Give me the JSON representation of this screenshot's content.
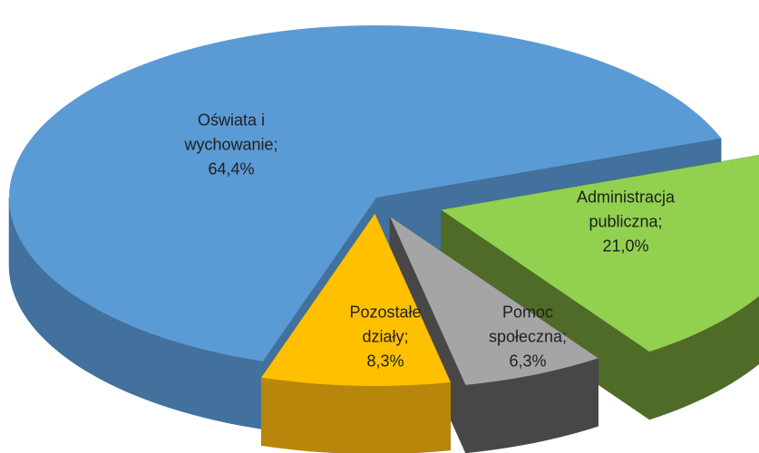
{
  "chart_data": {
    "type": "pie",
    "categories": [
      "Oświata i wychowanie",
      "Administracja publiczna",
      "Pomoc społeczna",
      "Pozostałe działy"
    ],
    "values": [
      64.4,
      21.0,
      6.3,
      8.3
    ],
    "value_labels": [
      "64,4%",
      "21,0%",
      "6,3%",
      "8,3%"
    ],
    "label_separator": ";",
    "colors": [
      "#5b9bd5",
      "#92d050",
      "#a5a5a5",
      "#ffc000"
    ],
    "side_colors": [
      "#41719c",
      "#4f6b28",
      "#474747",
      "#b8860b"
    ]
  }
}
